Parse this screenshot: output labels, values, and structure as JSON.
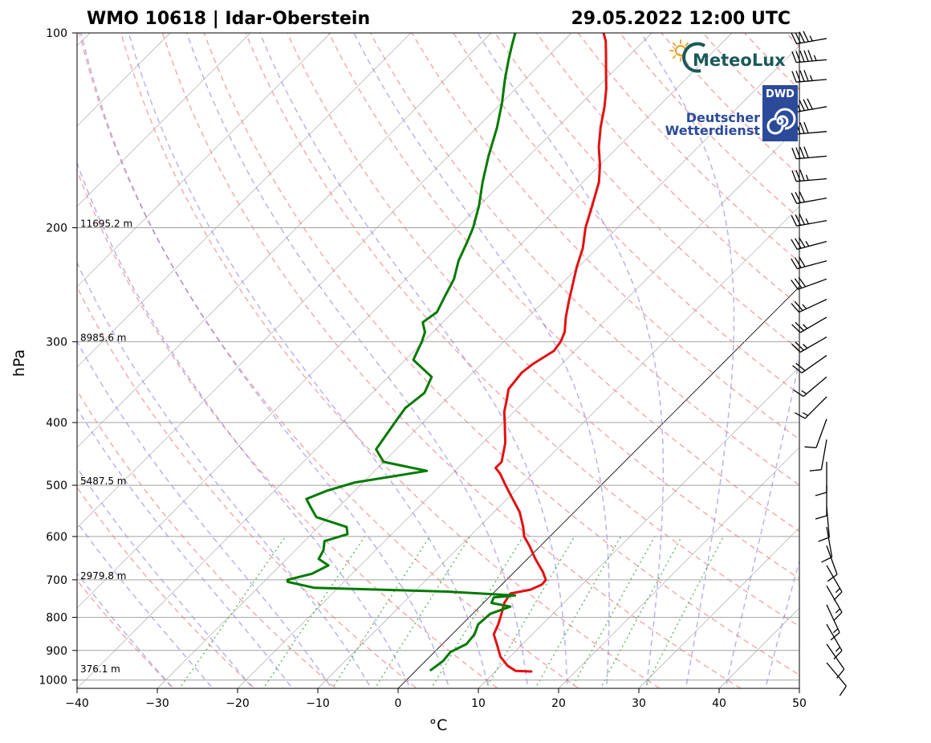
{
  "chart_data": {
    "type": "line",
    "title_left": "WMO 10618 | Idar-Oberstein",
    "title_right": "29.05.2022 12:00 UTC",
    "xlabel": "°C",
    "ylabel": "hPa",
    "xlim": [
      -40,
      50
    ],
    "ylim": [
      1030,
      100
    ],
    "y_scale": "log",
    "skew": true,
    "x_ticks": [
      "−40",
      "−30",
      "−20",
      "−10",
      "0",
      "10",
      "20",
      "30",
      "40",
      "50"
    ],
    "x_tick_values": [
      -40,
      -30,
      -20,
      -10,
      0,
      10,
      20,
      30,
      40,
      50
    ],
    "y_ticks": [
      "100",
      "200",
      "300",
      "400",
      "500",
      "600",
      "700",
      "800",
      "900",
      "1000"
    ],
    "y_tick_values": [
      100,
      200,
      300,
      400,
      500,
      600,
      700,
      800,
      900,
      1000
    ],
    "height_labels": [
      {
        "p": 200,
        "text": "11695.2 m"
      },
      {
        "p": 300,
        "text": "8985.6 m"
      },
      {
        "p": 500,
        "text": "5487.5 m"
      },
      {
        "p": 700,
        "text": "2979.8 m"
      },
      {
        "p": 975,
        "text": "376.1 m"
      }
    ],
    "grid": true,
    "series": [
      {
        "key": "temperature",
        "color": "#e31010",
        "points": [
          [
            970,
            14.5
          ],
          [
            968,
            12.5
          ],
          [
            950,
            10.8
          ],
          [
            920,
            8.8
          ],
          [
            880,
            6.8
          ],
          [
            850,
            5.2
          ],
          [
            820,
            4.5
          ],
          [
            790,
            3.6
          ],
          [
            760,
            2.6
          ],
          [
            742,
            2.3
          ],
          [
            735,
            2.2
          ],
          [
            725,
            4.2
          ],
          [
            712,
            5.0
          ],
          [
            700,
            4.9
          ],
          [
            680,
            3.5
          ],
          [
            650,
            1.0
          ],
          [
            620,
            -1.4
          ],
          [
            600,
            -3.2
          ],
          [
            580,
            -4.5
          ],
          [
            550,
            -6.8
          ],
          [
            520,
            -9.8
          ],
          [
            500,
            -11.9
          ],
          [
            480,
            -14.0
          ],
          [
            470,
            -15.3
          ],
          [
            460,
            -15.3
          ],
          [
            430,
            -17.2
          ],
          [
            400,
            -19.8
          ],
          [
            385,
            -21.2
          ],
          [
            370,
            -22.3
          ],
          [
            355,
            -23.5
          ],
          [
            345,
            -23.7
          ],
          [
            335,
            -23.9
          ],
          [
            325,
            -23.6
          ],
          [
            310,
            -22.6
          ],
          [
            300,
            -22.9
          ],
          [
            290,
            -23.6
          ],
          [
            275,
            -25.3
          ],
          [
            260,
            -26.9
          ],
          [
            245,
            -28.5
          ],
          [
            230,
            -30.2
          ],
          [
            215,
            -31.8
          ],
          [
            200,
            -34.0
          ],
          [
            185,
            -35.9
          ],
          [
            170,
            -38.0
          ],
          [
            160,
            -40.0
          ],
          [
            150,
            -42.4
          ],
          [
            140,
            -44.6
          ],
          [
            130,
            -46.7
          ],
          [
            122,
            -48.7
          ],
          [
            115,
            -50.8
          ],
          [
            108,
            -53.0
          ],
          [
            103,
            -54.7
          ],
          [
            100,
            -56.0
          ]
        ]
      },
      {
        "key": "dewpoint",
        "color": "#007a00",
        "points": [
          [
            965,
            1.8
          ],
          [
            935,
            2.2
          ],
          [
            905,
            2.0
          ],
          [
            880,
            3.0
          ],
          [
            850,
            2.8
          ],
          [
            820,
            2.0
          ],
          [
            790,
            2.2
          ],
          [
            770,
            3.8
          ],
          [
            760,
            1.0
          ],
          [
            745,
            0.6
          ],
          [
            740,
            3.0
          ],
          [
            730,
            -6.0
          ],
          [
            720,
            -23.0
          ],
          [
            705,
            -27.0
          ],
          [
            700,
            -27.3
          ],
          [
            685,
            -25.0
          ],
          [
            665,
            -24.0
          ],
          [
            650,
            -26.0
          ],
          [
            630,
            -26.5
          ],
          [
            610,
            -27.5
          ],
          [
            595,
            -25.5
          ],
          [
            580,
            -26.5
          ],
          [
            560,
            -31.5
          ],
          [
            540,
            -33.5
          ],
          [
            525,
            -35.0
          ],
          [
            510,
            -33.5
          ],
          [
            495,
            -31.0
          ],
          [
            475,
            -23.5
          ],
          [
            460,
            -30.0
          ],
          [
            440,
            -32.5
          ],
          [
            400,
            -33.5
          ],
          [
            380,
            -34.0
          ],
          [
            360,
            -33.5
          ],
          [
            340,
            -34.6
          ],
          [
            320,
            -39.0
          ],
          [
            300,
            -40.2
          ],
          [
            290,
            -41.0
          ],
          [
            280,
            -42.5
          ],
          [
            270,
            -42.0
          ],
          [
            255,
            -43.0
          ],
          [
            240,
            -44.0
          ],
          [
            225,
            -45.7
          ],
          [
            210,
            -47.0
          ],
          [
            200,
            -48.0
          ],
          [
            185,
            -50.0
          ],
          [
            170,
            -52.5
          ],
          [
            155,
            -55.0
          ],
          [
            140,
            -57.5
          ],
          [
            128,
            -60.0
          ],
          [
            118,
            -62.5
          ],
          [
            110,
            -64.5
          ],
          [
            104,
            -66.0
          ],
          [
            100,
            -67.0
          ]
        ]
      }
    ],
    "wind_barbs": {
      "color": "#000000",
      "note_units": "kt",
      "levels": [
        {
          "p": 102,
          "dir": 260,
          "spd": 45
        },
        {
          "p": 110,
          "dir": 265,
          "spd": 55
        },
        {
          "p": 118,
          "dir": 265,
          "spd": 45
        },
        {
          "p": 130,
          "dir": 260,
          "spd": 50
        },
        {
          "p": 142,
          "dir": 265,
          "spd": 40
        },
        {
          "p": 155,
          "dir": 265,
          "spd": 40
        },
        {
          "p": 168,
          "dir": 265,
          "spd": 35
        },
        {
          "p": 180,
          "dir": 260,
          "spd": 30
        },
        {
          "p": 195,
          "dir": 260,
          "spd": 35
        },
        {
          "p": 210,
          "dir": 255,
          "spd": 35
        },
        {
          "p": 225,
          "dir": 255,
          "spd": 30
        },
        {
          "p": 240,
          "dir": 250,
          "spd": 30
        },
        {
          "p": 258,
          "dir": 245,
          "spd": 25
        },
        {
          "p": 275,
          "dir": 240,
          "spd": 25
        },
        {
          "p": 295,
          "dir": 240,
          "spd": 25
        },
        {
          "p": 315,
          "dir": 235,
          "spd": 20
        },
        {
          "p": 340,
          "dir": 230,
          "spd": 15
        },
        {
          "p": 365,
          "dir": 225,
          "spd": 15
        },
        {
          "p": 395,
          "dir": 200,
          "spd": 10
        },
        {
          "p": 425,
          "dir": 190,
          "spd": 10
        },
        {
          "p": 460,
          "dir": 180,
          "spd": 10
        },
        {
          "p": 500,
          "dir": 180,
          "spd": 10
        },
        {
          "p": 540,
          "dir": 175,
          "spd": 10
        },
        {
          "p": 580,
          "dir": 170,
          "spd": 10
        },
        {
          "p": 620,
          "dir": 160,
          "spd": 10
        },
        {
          "p": 665,
          "dir": 150,
          "spd": 15
        },
        {
          "p": 715,
          "dir": 150,
          "spd": 15
        },
        {
          "p": 765,
          "dir": 155,
          "spd": 15
        },
        {
          "p": 820,
          "dir": 150,
          "spd": 15
        },
        {
          "p": 880,
          "dir": 145,
          "spd": 10
        },
        {
          "p": 940,
          "dir": 140,
          "spd": 10
        }
      ]
    }
  },
  "logos": {
    "meteolux_text": "MeteoLux",
    "meteolux_color": "#1a5a5a",
    "dwd_badge": "DWD",
    "dwd_line1": "Deutscher",
    "dwd_line2": "Wetterdienst",
    "dwd_color": "#2b4a9a"
  }
}
